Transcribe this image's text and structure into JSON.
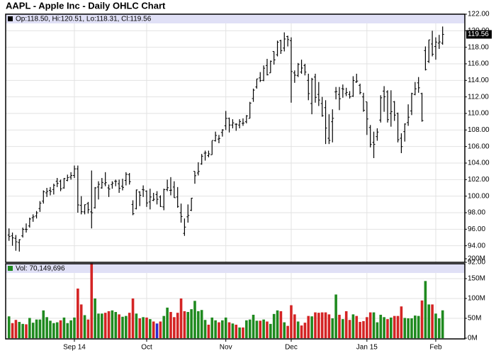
{
  "chart_data": [
    {
      "type": "ohlc",
      "title": "AAPL - Apple Inc - Daily OHLC Chart",
      "legend": "Op:118.50, Hi:120.51, Lo:118.31, Cl:119.56",
      "color": "#000000",
      "ylim": [
        92,
        122
      ],
      "yticks": [
        {
          "value": 92,
          "label": "92.00"
        },
        {
          "value": 94,
          "label": "94.00"
        },
        {
          "value": 96,
          "label": "96.00"
        },
        {
          "value": 98,
          "label": "98.00"
        },
        {
          "value": 100,
          "label": "100.00"
        },
        {
          "value": 102,
          "label": "102.00"
        },
        {
          "value": 104,
          "label": "104.00"
        },
        {
          "value": 106,
          "label": "106.00"
        },
        {
          "value": 108,
          "label": "108.00"
        },
        {
          "value": 110,
          "label": "110.00"
        },
        {
          "value": 112,
          "label": "112.00"
        },
        {
          "value": 114,
          "label": "114.00"
        },
        {
          "value": 116,
          "label": "116.00"
        },
        {
          "value": 118,
          "label": "118.00"
        },
        {
          "value": 120,
          "label": "120.00"
        },
        {
          "value": 122,
          "label": "122.00"
        }
      ],
      "grid": true,
      "open": [
        95.3,
        95.2,
        94.9,
        94.4,
        95.2,
        96.0,
        96.4,
        97.4,
        97.6,
        98.5,
        99.4,
        100.4,
        100.7,
        100.8,
        101.8,
        101.8,
        101.0,
        101.9,
        102.3,
        102.5,
        103.3,
        98.9,
        98.1,
        99.1,
        98.1,
        98.6,
        101.1,
        101.0,
        101.5,
        101.0,
        101.4,
        101.8,
        101.5,
        101.2,
        101.9,
        102.6,
        99.0,
        98.5,
        100.5,
        100.8,
        100.6,
        99.3,
        99.5,
        100.2,
        99.9,
        98.7,
        100.8,
        100.7,
        101.1,
        99.9,
        98.0,
        95.5,
        97.5,
        98.3,
        103.0,
        102.8,
        103.9,
        105.2,
        104.9,
        105.0,
        106.7,
        106.9,
        107.7,
        108.5,
        109.4,
        108.6,
        108.7,
        108.6,
        108.8,
        109.0,
        109.4,
        111.8,
        113.2,
        114.3,
        114.0,
        115.8,
        114.9,
        117.5,
        117.1,
        118.8,
        117.9,
        119.3,
        118.8,
        114.9,
        114.6,
        115.0,
        115.8,
        114.0,
        111.2,
        114.4,
        112.3,
        111.2,
        110.7,
        107.0,
        109.0,
        112.6,
        112.3,
        113.0,
        112.4,
        112.3,
        112.1,
        113.8,
        113.4,
        112.0,
        111.4,
        108.3,
        106.5,
        107.2,
        109.2,
        112.7,
        112.6,
        110.0,
        111.4,
        110.0,
        107.0,
        107.8,
        108.9,
        110.3,
        112.3,
        113.7,
        112.4,
        117.6,
        116.3,
        118.4,
        118.1,
        118.5,
        118.5
      ],
      "high": [
        96.1,
        95.6,
        95.3,
        94.8,
        96.2,
        96.7,
        97.4,
        97.8,
        98.2,
        99.4,
        100.7,
        101.0,
        101.1,
        101.5,
        102.2,
        102.0,
        102.2,
        102.6,
        102.9,
        103.7,
        103.7,
        100.0,
        99.0,
        99.3,
        103.1,
        101.1,
        101.8,
        102.2,
        102.9,
        101.4,
        101.8,
        102.0,
        102.0,
        102.1,
        102.9,
        102.8,
        99.5,
        100.8,
        100.6,
        101.3,
        100.7,
        100.9,
        100.4,
        100.6,
        100.1,
        100.9,
        102.0,
        102.3,
        101.8,
        101.1,
        99.1,
        97.3,
        99.0,
        99.8,
        103.0,
        104.1,
        105.1,
        105.5,
        105.5,
        106.7,
        107.8,
        107.4,
        108.1,
        110.3,
        109.5,
        109.3,
        108.8,
        109.3,
        109.4,
        109.8,
        111.4,
        113.0,
        114.2,
        115.0,
        115.8,
        116.6,
        116.4,
        117.5,
        118.8,
        118.9,
        119.8,
        119.4,
        119.2,
        115.2,
        116.1,
        116.5,
        116.0,
        114.8,
        114.3,
        114.8,
        113.8,
        112.0,
        111.6,
        109.9,
        110.5,
        113.2,
        113.2,
        113.5,
        113.1,
        112.7,
        114.5,
        114.8,
        113.6,
        112.5,
        111.4,
        108.6,
        107.8,
        108.2,
        112.2,
        113.3,
        112.8,
        112.8,
        111.5,
        110.1,
        107.6,
        108.8,
        111.1,
        112.5,
        113.8,
        114.4,
        112.5,
        118.1,
        118.9,
        120.0,
        119.2,
        119.5,
        120.51
      ],
      "low": [
        94.6,
        94.0,
        93.4,
        93.3,
        95.0,
        95.6,
        96.2,
        96.9,
        97.3,
        98.1,
        99.1,
        99.9,
        100.1,
        100.2,
        101.1,
        100.6,
        100.9,
        101.8,
        102.0,
        102.2,
        98.0,
        97.8,
        97.8,
        97.9,
        96.1,
        98.5,
        99.6,
        100.9,
        101.2,
        99.9,
        100.9,
        101.2,
        100.4,
        100.7,
        101.3,
        101.4,
        97.7,
        98.4,
        98.8,
        99.9,
        98.7,
        98.4,
        99.4,
        99.0,
        98.7,
        98.3,
        100.6,
        100.1,
        99.8,
        98.6,
        96.8,
        95.2,
        96.8,
        98.2,
        101.5,
        102.5,
        103.8,
        104.3,
        104.7,
        105.0,
        106.6,
        106.4,
        107.2,
        108.0,
        107.7,
        108.2,
        107.9,
        108.2,
        108.5,
        108.8,
        109.4,
        111.4,
        113.0,
        113.8,
        113.9,
        114.6,
        114.9,
        115.9,
        116.9,
        117.2,
        117.5,
        118.1,
        111.3,
        113.7,
        114.4,
        114.8,
        114.6,
        111.6,
        109.9,
        111.3,
        110.9,
        109.6,
        106.3,
        106.3,
        106.5,
        111.7,
        110.4,
        111.9,
        112.1,
        111.8,
        112.0,
        113.7,
        112.3,
        110.2,
        107.4,
        105.9,
        104.6,
        106.7,
        108.9,
        110.2,
        108.9,
        108.4,
        109.1,
        106.5,
        105.2,
        106.6,
        108.5,
        109.8,
        112.2,
        112.5,
        109.0,
        115.2,
        116.1,
        116.9,
        116.5,
        117.8,
        118.31
      ],
      "close": [
        95.12,
        94.96,
        94.48,
        94.74,
        95.99,
        95.97,
        97.24,
        97.5,
        97.98,
        99.16,
        100.53,
        100.57,
        100.58,
        101.32,
        101.54,
        100.89,
        102.13,
        102.25,
        102.5,
        103.3,
        98.94,
        98.12,
        98.97,
        98.36,
        97.99,
        101.0,
        101.43,
        101.66,
        101.63,
        100.86,
        101.58,
        101.79,
        100.96,
        101.06,
        102.64,
        101.75,
        97.87,
        100.75,
        100.11,
        100.75,
        99.18,
        99.9,
        99.62,
        99.62,
        98.75,
        100.8,
        101.02,
        100.73,
        99.81,
        98.75,
        97.54,
        96.26,
        97.67,
        99.76,
        102.47,
        102.99,
        104.83,
        105.22,
        105.11,
        106.74,
        107.34,
        106.98,
        108.0,
        109.4,
        108.6,
        108.86,
        108.7,
        109.01,
        108.83,
        109.7,
        111.25,
        112.82,
        114.18,
        113.99,
        115.47,
        114.67,
        116.31,
        116.47,
        118.62,
        117.6,
        119.0,
        118.93,
        115.07,
        114.63,
        115.93,
        115.49,
        115.0,
        112.4,
        114.12,
        111.95,
        111.62,
        109.73,
        108.23,
        106.75,
        109.41,
        112.65,
        111.78,
        112.94,
        112.54,
        112.01,
        113.99,
        113.91,
        112.52,
        110.38,
        109.33,
        106.25,
        106.26,
        107.75,
        111.89,
        112.01,
        109.25,
        110.22,
        109.8,
        106.82,
        105.99,
        108.72,
        109.55,
        112.4,
        112.98,
        113.1,
        109.14,
        115.31,
        118.9,
        117.16,
        118.63,
        118.65,
        119.56
      ]
    },
    {
      "type": "bar",
      "legend": "Vol: 70,149,696",
      "up_color": "#1f8a1f",
      "down_color": "#d42424",
      "unchanged_color": "#2a2ad0",
      "ylim": [
        0,
        200000000
      ],
      "yticks": [
        {
          "value": 0,
          "label": "0M"
        },
        {
          "value": 50000000,
          "label": "50M"
        },
        {
          "value": 100000000,
          "label": "100M"
        },
        {
          "value": 150000000,
          "label": "150M"
        },
        {
          "value": 200000000,
          "label": "200M"
        }
      ],
      "grid": true,
      "categories": [
        null,
        null,
        null,
        null,
        null,
        null,
        null,
        null,
        null,
        null,
        null,
        null,
        null,
        null,
        null,
        null,
        null,
        null,
        null,
        "Sep 14",
        null,
        null,
        null,
        null,
        null,
        null,
        null,
        null,
        null,
        null,
        null,
        null,
        null,
        null,
        null,
        null,
        null,
        null,
        null,
        null,
        "Oct",
        null,
        null,
        null,
        null,
        null,
        null,
        null,
        null,
        null,
        null,
        null,
        null,
        null,
        null,
        null,
        null,
        null,
        null,
        null,
        null,
        null,
        null,
        "Nov",
        null,
        null,
        null,
        null,
        null,
        null,
        null,
        null,
        null,
        null,
        null,
        null,
        null,
        null,
        null,
        null,
        null,
        null,
        "Dec",
        null,
        null,
        null,
        null,
        null,
        null,
        null,
        null,
        null,
        null,
        null,
        null,
        null,
        null,
        null,
        null,
        null,
        null,
        null,
        null,
        null,
        "Jan 15",
        null,
        null,
        null,
        null,
        null,
        null,
        null,
        null,
        null,
        null,
        null,
        null,
        null,
        null,
        null,
        null,
        null,
        null,
        null,
        "Feb",
        null,
        null
      ],
      "values": [
        55000000,
        38000000,
        46000000,
        41000000,
        36000000,
        35000000,
        51000000,
        39000000,
        47000000,
        47000000,
        70000000,
        53000000,
        44000000,
        38000000,
        40000000,
        45000000,
        52000000,
        38000000,
        45000000,
        52000000,
        125000000,
        85000000,
        58000000,
        47000000,
        189000000,
        100000000,
        62000000,
        62000000,
        64000000,
        68000000,
        70000000,
        66000000,
        60000000,
        54000000,
        56000000,
        64000000,
        100000000,
        62000000,
        50000000,
        53000000,
        52000000,
        48000000,
        42000000,
        37000000,
        42000000,
        56000000,
        77000000,
        66000000,
        53000000,
        64000000,
        100000000,
        68000000,
        66000000,
        73000000,
        94000000,
        68000000,
        71000000,
        46000000,
        34000000,
        52000000,
        45000000,
        40000000,
        45000000,
        52000000,
        40000000,
        37000000,
        34000000,
        27000000,
        27000000,
        45000000,
        47000000,
        59000000,
        44000000,
        44000000,
        47000000,
        42000000,
        36000000,
        61000000,
        70000000,
        68000000,
        40000000,
        31000000,
        83000000,
        60000000,
        42000000,
        32000000,
        39000000,
        56000000,
        55000000,
        65000000,
        64000000,
        65000000,
        65000000,
        60000000,
        50000000,
        110000000,
        59000000,
        48000000,
        68000000,
        46000000,
        60000000,
        56000000,
        41000000,
        43000000,
        53000000,
        65000000,
        65000000,
        40000000,
        59000000,
        53000000,
        48000000,
        52000000,
        56000000,
        56000000,
        80000000,
        51000000,
        50000000,
        50000000,
        57000000,
        56000000,
        95000000,
        144000000,
        85000000,
        85000000,
        62000000,
        50000000,
        70149696
      ]
    }
  ]
}
